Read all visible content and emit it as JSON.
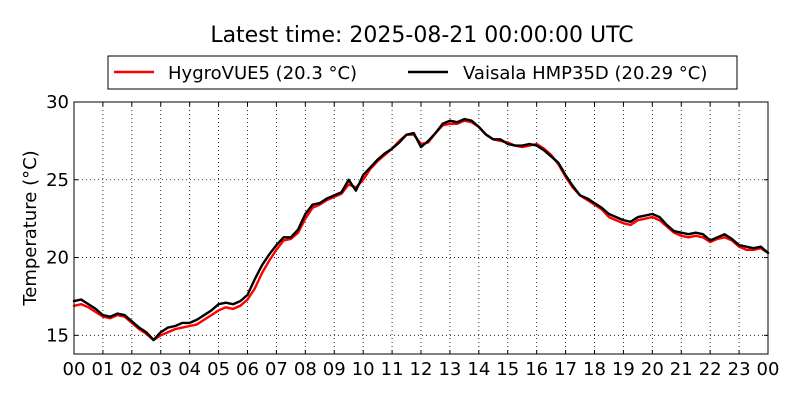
{
  "chart_data": {
    "type": "line",
    "title": "Latest time: 2025-08-21 00:00:00 UTC",
    "xlabel": "",
    "ylabel": "Temperature (°C)",
    "xlim": [
      0,
      24
    ],
    "ylim": [
      13.8,
      30
    ],
    "x_ticks": [
      "00",
      "01",
      "02",
      "03",
      "04",
      "05",
      "06",
      "07",
      "08",
      "09",
      "10",
      "11",
      "12",
      "13",
      "14",
      "15",
      "16",
      "17",
      "18",
      "19",
      "20",
      "21",
      "22",
      "23",
      "00"
    ],
    "y_ticks": [
      15,
      20,
      25,
      30
    ],
    "grid": true,
    "legend": "top",
    "series": [
      {
        "name": "HygroVUE5 (20.3 °C)",
        "color": "#ff0000",
        "points": [
          [
            0.0,
            16.9
          ],
          [
            0.25,
            17.0
          ],
          [
            0.5,
            16.8
          ],
          [
            0.75,
            16.5
          ],
          [
            1.0,
            16.2
          ],
          [
            1.25,
            16.1
          ],
          [
            1.5,
            16.3
          ],
          [
            1.75,
            16.2
          ],
          [
            2.0,
            15.8
          ],
          [
            2.25,
            15.4
          ],
          [
            2.5,
            15.1
          ],
          [
            2.75,
            14.7
          ],
          [
            3.0,
            15.0
          ],
          [
            3.25,
            15.2
          ],
          [
            3.5,
            15.4
          ],
          [
            3.75,
            15.5
          ],
          [
            4.0,
            15.6
          ],
          [
            4.25,
            15.7
          ],
          [
            4.5,
            16.0
          ],
          [
            4.75,
            16.3
          ],
          [
            5.0,
            16.6
          ],
          [
            5.25,
            16.8
          ],
          [
            5.5,
            16.7
          ],
          [
            5.75,
            16.9
          ],
          [
            6.0,
            17.3
          ],
          [
            6.25,
            18.0
          ],
          [
            6.5,
            19.0
          ],
          [
            6.75,
            19.8
          ],
          [
            7.0,
            20.5
          ],
          [
            7.25,
            21.1
          ],
          [
            7.5,
            21.2
          ],
          [
            7.75,
            21.6
          ],
          [
            8.0,
            22.5
          ],
          [
            8.25,
            23.2
          ],
          [
            8.5,
            23.4
          ],
          [
            8.75,
            23.7
          ],
          [
            9.0,
            23.9
          ],
          [
            9.25,
            24.1
          ],
          [
            9.5,
            24.7
          ],
          [
            9.75,
            24.5
          ],
          [
            10.0,
            25.0
          ],
          [
            10.25,
            25.7
          ],
          [
            10.5,
            26.2
          ],
          [
            10.75,
            26.6
          ],
          [
            11.0,
            27.0
          ],
          [
            11.25,
            27.5
          ],
          [
            11.5,
            27.9
          ],
          [
            11.75,
            27.9
          ],
          [
            12.0,
            27.3
          ],
          [
            12.25,
            27.4
          ],
          [
            12.5,
            28.0
          ],
          [
            12.75,
            28.5
          ],
          [
            13.0,
            28.6
          ],
          [
            13.25,
            28.6
          ],
          [
            13.5,
            28.8
          ],
          [
            13.75,
            28.7
          ],
          [
            14.0,
            28.4
          ],
          [
            14.25,
            27.9
          ],
          [
            14.5,
            27.6
          ],
          [
            14.75,
            27.5
          ],
          [
            15.0,
            27.4
          ],
          [
            15.25,
            27.2
          ],
          [
            15.5,
            27.1
          ],
          [
            15.75,
            27.2
          ],
          [
            16.0,
            27.3
          ],
          [
            16.25,
            27.0
          ],
          [
            16.5,
            26.6
          ],
          [
            16.75,
            26.0
          ],
          [
            17.0,
            25.2
          ],
          [
            17.25,
            24.5
          ],
          [
            17.5,
            24.0
          ],
          [
            17.75,
            23.7
          ],
          [
            18.0,
            23.4
          ],
          [
            18.25,
            23.1
          ],
          [
            18.5,
            22.6
          ],
          [
            18.75,
            22.4
          ],
          [
            19.0,
            22.2
          ],
          [
            19.25,
            22.1
          ],
          [
            19.5,
            22.4
          ],
          [
            19.75,
            22.5
          ],
          [
            20.0,
            22.6
          ],
          [
            20.25,
            22.4
          ],
          [
            20.5,
            22.0
          ],
          [
            20.75,
            21.6
          ],
          [
            21.0,
            21.4
          ],
          [
            21.25,
            21.3
          ],
          [
            21.5,
            21.4
          ],
          [
            21.75,
            21.3
          ],
          [
            22.0,
            21.0
          ],
          [
            22.25,
            21.2
          ],
          [
            22.5,
            21.3
          ],
          [
            22.75,
            21.1
          ],
          [
            23.0,
            20.7
          ],
          [
            23.25,
            20.5
          ],
          [
            23.5,
            20.5
          ],
          [
            23.75,
            20.6
          ],
          [
            24.0,
            20.3
          ]
        ]
      },
      {
        "name": "Vaisala HMP35D (20.29 °C)",
        "color": "#000000",
        "points": [
          [
            0.0,
            17.2
          ],
          [
            0.25,
            17.3
          ],
          [
            0.5,
            17.0
          ],
          [
            0.75,
            16.7
          ],
          [
            1.0,
            16.3
          ],
          [
            1.25,
            16.2
          ],
          [
            1.5,
            16.4
          ],
          [
            1.75,
            16.3
          ],
          [
            2.0,
            15.9
          ],
          [
            2.25,
            15.5
          ],
          [
            2.5,
            15.2
          ],
          [
            2.75,
            14.7
          ],
          [
            3.0,
            15.2
          ],
          [
            3.25,
            15.5
          ],
          [
            3.5,
            15.6
          ],
          [
            3.75,
            15.8
          ],
          [
            4.0,
            15.8
          ],
          [
            4.25,
            16.0
          ],
          [
            4.5,
            16.3
          ],
          [
            4.75,
            16.6
          ],
          [
            5.0,
            17.0
          ],
          [
            5.25,
            17.1
          ],
          [
            5.5,
            17.0
          ],
          [
            5.75,
            17.2
          ],
          [
            6.0,
            17.6
          ],
          [
            6.25,
            18.6
          ],
          [
            6.5,
            19.5
          ],
          [
            6.75,
            20.2
          ],
          [
            7.0,
            20.8
          ],
          [
            7.25,
            21.3
          ],
          [
            7.5,
            21.3
          ],
          [
            7.75,
            21.8
          ],
          [
            8.0,
            22.8
          ],
          [
            8.25,
            23.4
          ],
          [
            8.5,
            23.5
          ],
          [
            8.75,
            23.8
          ],
          [
            9.0,
            24.0
          ],
          [
            9.25,
            24.2
          ],
          [
            9.5,
            25.0
          ],
          [
            9.75,
            24.3
          ],
          [
            10.0,
            25.3
          ],
          [
            10.25,
            25.8
          ],
          [
            10.5,
            26.3
          ],
          [
            10.75,
            26.7
          ],
          [
            11.0,
            27.0
          ],
          [
            11.25,
            27.4
          ],
          [
            11.5,
            27.9
          ],
          [
            11.75,
            28.0
          ],
          [
            12.0,
            27.1
          ],
          [
            12.25,
            27.5
          ],
          [
            12.5,
            28.0
          ],
          [
            12.75,
            28.6
          ],
          [
            13.0,
            28.8
          ],
          [
            13.25,
            28.7
          ],
          [
            13.5,
            28.9
          ],
          [
            13.75,
            28.8
          ],
          [
            14.0,
            28.4
          ],
          [
            14.25,
            27.9
          ],
          [
            14.5,
            27.6
          ],
          [
            14.75,
            27.6
          ],
          [
            15.0,
            27.3
          ],
          [
            15.25,
            27.2
          ],
          [
            15.5,
            27.2
          ],
          [
            15.75,
            27.3
          ],
          [
            16.0,
            27.2
          ],
          [
            16.25,
            26.9
          ],
          [
            16.5,
            26.5
          ],
          [
            16.75,
            26.1
          ],
          [
            17.0,
            25.3
          ],
          [
            17.25,
            24.6
          ],
          [
            17.5,
            24.0
          ],
          [
            17.75,
            23.8
          ],
          [
            18.0,
            23.5
          ],
          [
            18.25,
            23.2
          ],
          [
            18.5,
            22.8
          ],
          [
            18.75,
            22.6
          ],
          [
            19.0,
            22.4
          ],
          [
            19.25,
            22.3
          ],
          [
            19.5,
            22.6
          ],
          [
            19.75,
            22.7
          ],
          [
            20.0,
            22.8
          ],
          [
            20.25,
            22.6
          ],
          [
            20.5,
            22.1
          ],
          [
            20.75,
            21.7
          ],
          [
            21.0,
            21.6
          ],
          [
            21.25,
            21.5
          ],
          [
            21.5,
            21.6
          ],
          [
            21.75,
            21.5
          ],
          [
            22.0,
            21.1
          ],
          [
            22.25,
            21.3
          ],
          [
            22.5,
            21.5
          ],
          [
            22.75,
            21.2
          ],
          [
            23.0,
            20.8
          ],
          [
            23.25,
            20.7
          ],
          [
            23.5,
            20.6
          ],
          [
            23.75,
            20.7
          ],
          [
            24.0,
            20.3
          ]
        ]
      }
    ]
  }
}
